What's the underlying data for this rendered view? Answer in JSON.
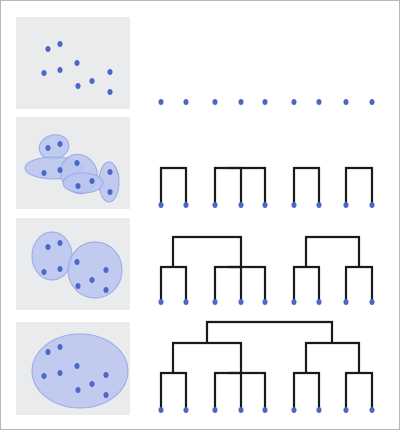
{
  "diagram": {
    "kind": "agglomerative-clustering-steps",
    "point_count": 9,
    "colors": {
      "point": "#4a67c9",
      "cluster_fill": "#b9c5f0",
      "cluster_stroke": "#9aa9e6",
      "panel_background": "#e9ebec",
      "dendrogram_line": "#1a1a1a",
      "frame": "#b9b9b9"
    },
    "steps": [
      {
        "step": 1,
        "clusters": 9,
        "merges": 0
      },
      {
        "step": 2,
        "clusters": 4,
        "merges": 5
      },
      {
        "step": 3,
        "clusters": 2,
        "merges": 7
      },
      {
        "step": 4,
        "clusters": 1,
        "merges": 8
      }
    ]
  }
}
